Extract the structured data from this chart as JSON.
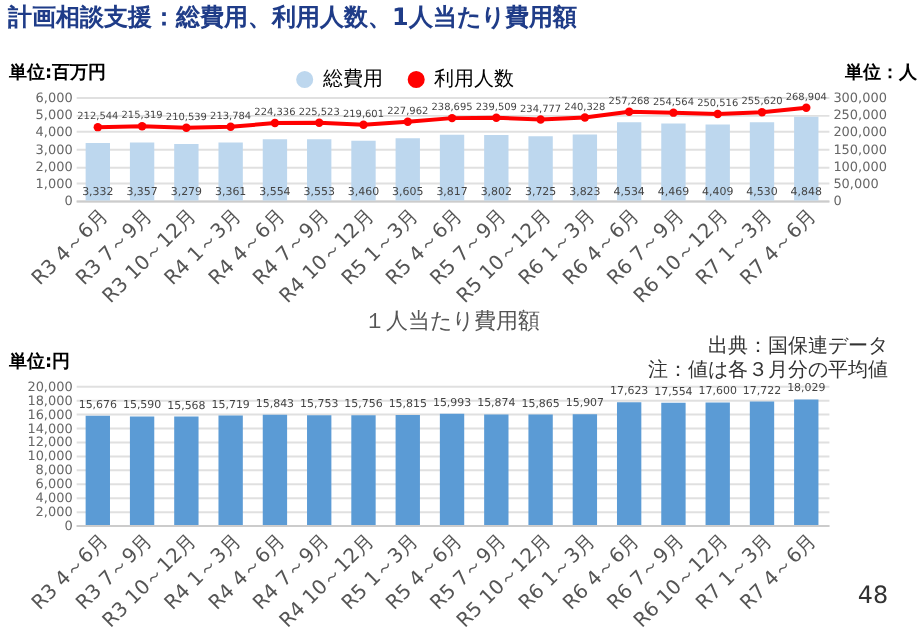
{
  "chart_data": [
    {
      "type": "bar",
      "title": "計画相談支援：総費用、利用人数、1人当たり費用額",
      "ylabel": "単位:百万円",
      "y2label": "単位：人",
      "categories": [
        "R3 4～6月",
        "R3 7～9月",
        "R3 10～12月",
        "R4 1～3月",
        "R4 4～6月",
        "R4 7～9月",
        "R4 10～12月",
        "R5 1～3月",
        "R5 4～6月",
        "R5 7～9月",
        "R5 10～12月",
        "R6 1～3月",
        "R6 4～6月",
        "R6 7～9月",
        "R6 10～12月",
        "R7 1～3月",
        "R7 4～6月"
      ],
      "series": [
        {
          "name": "総費用",
          "type": "bar",
          "color": "#bdd7ee",
          "values": [
            3332,
            3357,
            3279,
            3361,
            3554,
            3553,
            3460,
            3605,
            3817,
            3802,
            3725,
            3823,
            4534,
            4469,
            4409,
            4530,
            4848
          ],
          "value_labels": [
            "3,332",
            "3,357",
            "3,279",
            "3,361",
            "3,554",
            "3,553",
            "3,460",
            "3,605",
            "3,817",
            "3,802",
            "3,725",
            "3,823",
            "4,534",
            "4,469",
            "4,409",
            "4,530",
            "4,848"
          ]
        },
        {
          "name": "利用人数",
          "type": "line",
          "axis": "y2",
          "color": "#ff0000",
          "values": [
            212544,
            215319,
            210539,
            213784,
            224336,
            225523,
            219601,
            227962,
            238695,
            239509,
            234777,
            240328,
            257268,
            254564,
            250516,
            255620,
            268904
          ],
          "value_labels": [
            "212,544",
            "215,319",
            "210,539",
            "213,784",
            "224,336",
            "225,523",
            "219,601",
            "227,962",
            "238,695",
            "239,509",
            "234,777",
            "240,328",
            "257,268",
            "254,564",
            "250,516",
            "255,620",
            "268,904"
          ]
        }
      ],
      "ylim": [
        0,
        6000
      ],
      "yticks": [
        0,
        {
          "value": 1000,
          "label": "1,000"
        },
        {
          "value": 2000,
          "label": "2,000"
        },
        {
          "value": 3000,
          "label": "3,000"
        },
        {
          "value": 4000,
          "label": "4,000"
        },
        {
          "value": 5000,
          "label": "5,000"
        },
        {
          "value": 6000,
          "label": "6,000"
        }
      ],
      "y2lim": [
        0,
        300000
      ],
      "y2ticks": [
        0,
        {
          "value": 50000,
          "label": "50,000"
        },
        {
          "value": 100000,
          "label": "100,000"
        },
        {
          "value": 150000,
          "label": "150,000"
        },
        {
          "value": 200000,
          "label": "200,000"
        },
        {
          "value": 250000,
          "label": "250,000"
        },
        {
          "value": 300000,
          "label": "300,000"
        }
      ],
      "grid": "y",
      "legend": "top",
      "marker": "circle",
      "data_labels": true
    },
    {
      "type": "bar",
      "title": "１人当たり費用額",
      "ylabel": "単位:円",
      "categories": [
        "R3 4～6月",
        "R3 7～9月",
        "R3 10～12月",
        "R4 1～3月",
        "R4 4～6月",
        "R4 7～9月",
        "R4 10～12月",
        "R5 1～3月",
        "R5 4～6月",
        "R5 7～9月",
        "R5 10～12月",
        "R6 1～3月",
        "R6 4～6月",
        "R6 7～9月",
        "R6 10～12月",
        "R7 1～3月",
        "R7 4～6月"
      ],
      "series": [
        {
          "color": "#5b9bd5",
          "values": [
            15676,
            15590,
            15568,
            15719,
            15843,
            15753,
            15756,
            15815,
            15993,
            15874,
            15865,
            15907,
            17623,
            17554,
            17600,
            17722,
            18029
          ],
          "value_labels": [
            "15,676",
            "15,590",
            "15,568",
            "15,719",
            "15,843",
            "15,753",
            "15,756",
            "15,815",
            "15,993",
            "15,874",
            "15,865",
            "15,907",
            "17,623",
            "17,554",
            "17,600",
            "17,722",
            "18,029"
          ]
        }
      ],
      "ylim": [
        0,
        20000
      ],
      "yticks": [
        0,
        {
          "value": 2000,
          "label": "2,000"
        },
        {
          "value": 4000,
          "label": "4,000"
        },
        {
          "value": 6000,
          "label": "6,000"
        },
        {
          "value": 8000,
          "label": "8,000"
        },
        {
          "value": 10000,
          "label": "10,000"
        },
        {
          "value": 12000,
          "label": "12,000"
        },
        {
          "value": 14000,
          "label": "14,000"
        },
        {
          "value": 16000,
          "label": "16,000"
        },
        {
          "value": 18000,
          "label": "18,000"
        },
        {
          "value": 20000,
          "label": "20,000"
        }
      ],
      "grid": "y",
      "data_labels": true,
      "annotations": [
        "出典：国保連データ",
        "注：値は各３月分の平均値",
        "48"
      ]
    }
  ]
}
